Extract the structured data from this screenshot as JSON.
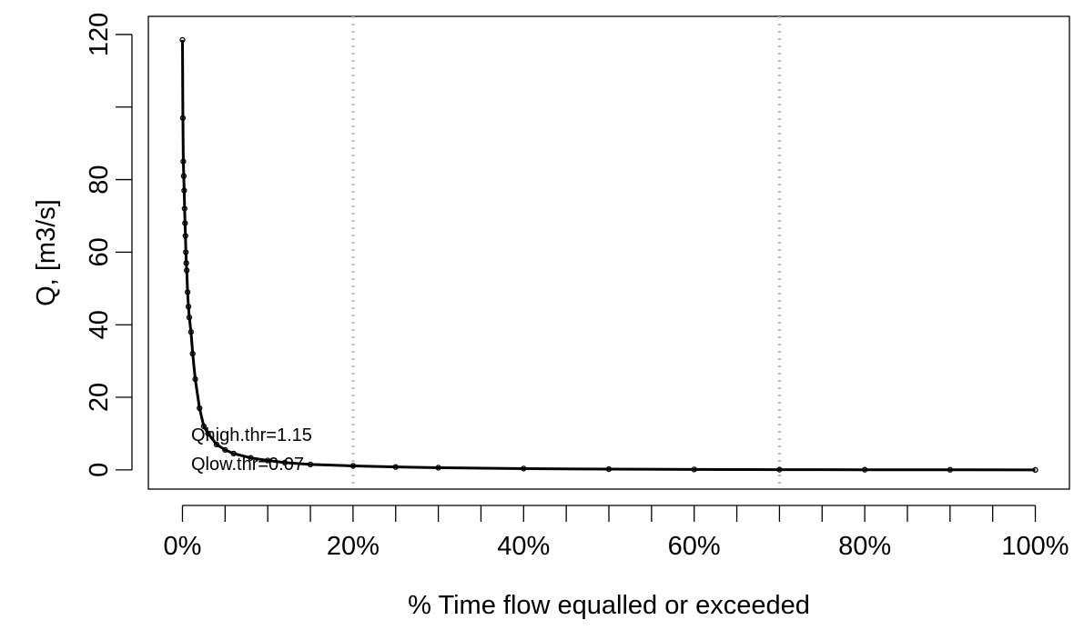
{
  "chart_data": {
    "type": "line",
    "x_label": "% Time flow equalled or exceeded",
    "y_label": "Q, [m3/s]",
    "x": [
      0.0,
      0.05,
      0.1,
      0.15,
      0.2,
      0.25,
      0.3,
      0.35,
      0.4,
      0.45,
      0.5,
      0.6,
      0.7,
      0.8,
      1.0,
      1.2,
      1.5,
      2,
      2.5,
      3,
      4,
      5,
      6,
      8,
      10,
      12,
      15,
      20,
      25,
      30,
      40,
      50,
      60,
      70,
      80,
      90,
      100
    ],
    "values": [
      118.5,
      97,
      85,
      81,
      77,
      72,
      68,
      64.5,
      60,
      57,
      55,
      49,
      45,
      42,
      38,
      32,
      25,
      17,
      12,
      10,
      7,
      5.5,
      4.5,
      3.3,
      2.6,
      2,
      1.5,
      1.1,
      0.8,
      0.6,
      0.35,
      0.2,
      0.12,
      0.07,
      0.04,
      0.02,
      0
    ],
    "color": "#000000",
    "xlim": [
      -4,
      104
    ],
    "ylim": [
      -5.3,
      125
    ],
    "xticks": [
      {
        "value": 0,
        "label": "0%"
      },
      {
        "value": 20,
        "label": "20%"
      },
      {
        "value": 40,
        "label": "40%"
      },
      {
        "value": 60,
        "label": "60%"
      },
      {
        "value": 80,
        "label": "80%"
      },
      {
        "value": 100,
        "label": "100%"
      }
    ],
    "xminor_ticks": [
      5,
      10,
      15,
      25,
      30,
      35,
      45,
      50,
      55,
      65,
      70,
      75,
      85,
      90,
      95
    ],
    "yticks": [
      0,
      20,
      40,
      60,
      80,
      {
        "value": 100,
        "label": null
      },
      120
    ],
    "vlines": [
      20,
      70
    ],
    "annotations": [
      "Qhigh.thr=1.15",
      "Qlow.thr=0.07"
    ]
  }
}
